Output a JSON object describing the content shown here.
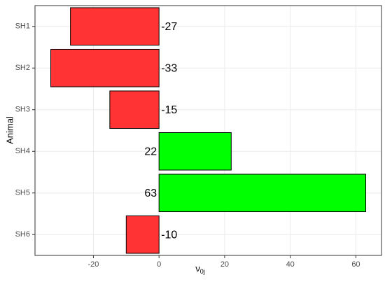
{
  "chart_data": {
    "type": "barh",
    "categories": [
      "SH1",
      "SH2",
      "SH3",
      "SH4",
      "SH5",
      "SH6"
    ],
    "values": [
      -27,
      -33,
      -15,
      22,
      63,
      -10
    ],
    "colors": [
      "#ff3333",
      "#ff3333",
      "#ff3333",
      "#00ff00",
      "#00ff00",
      "#ff3333"
    ],
    "xlim": [
      -37.8,
      67.8
    ],
    "xticks": [
      -20,
      0,
      20,
      40,
      60
    ],
    "xlabel": "ν",
    "xlabel_subscript": "0j",
    "ylabel": "Animal",
    "grid": true
  }
}
